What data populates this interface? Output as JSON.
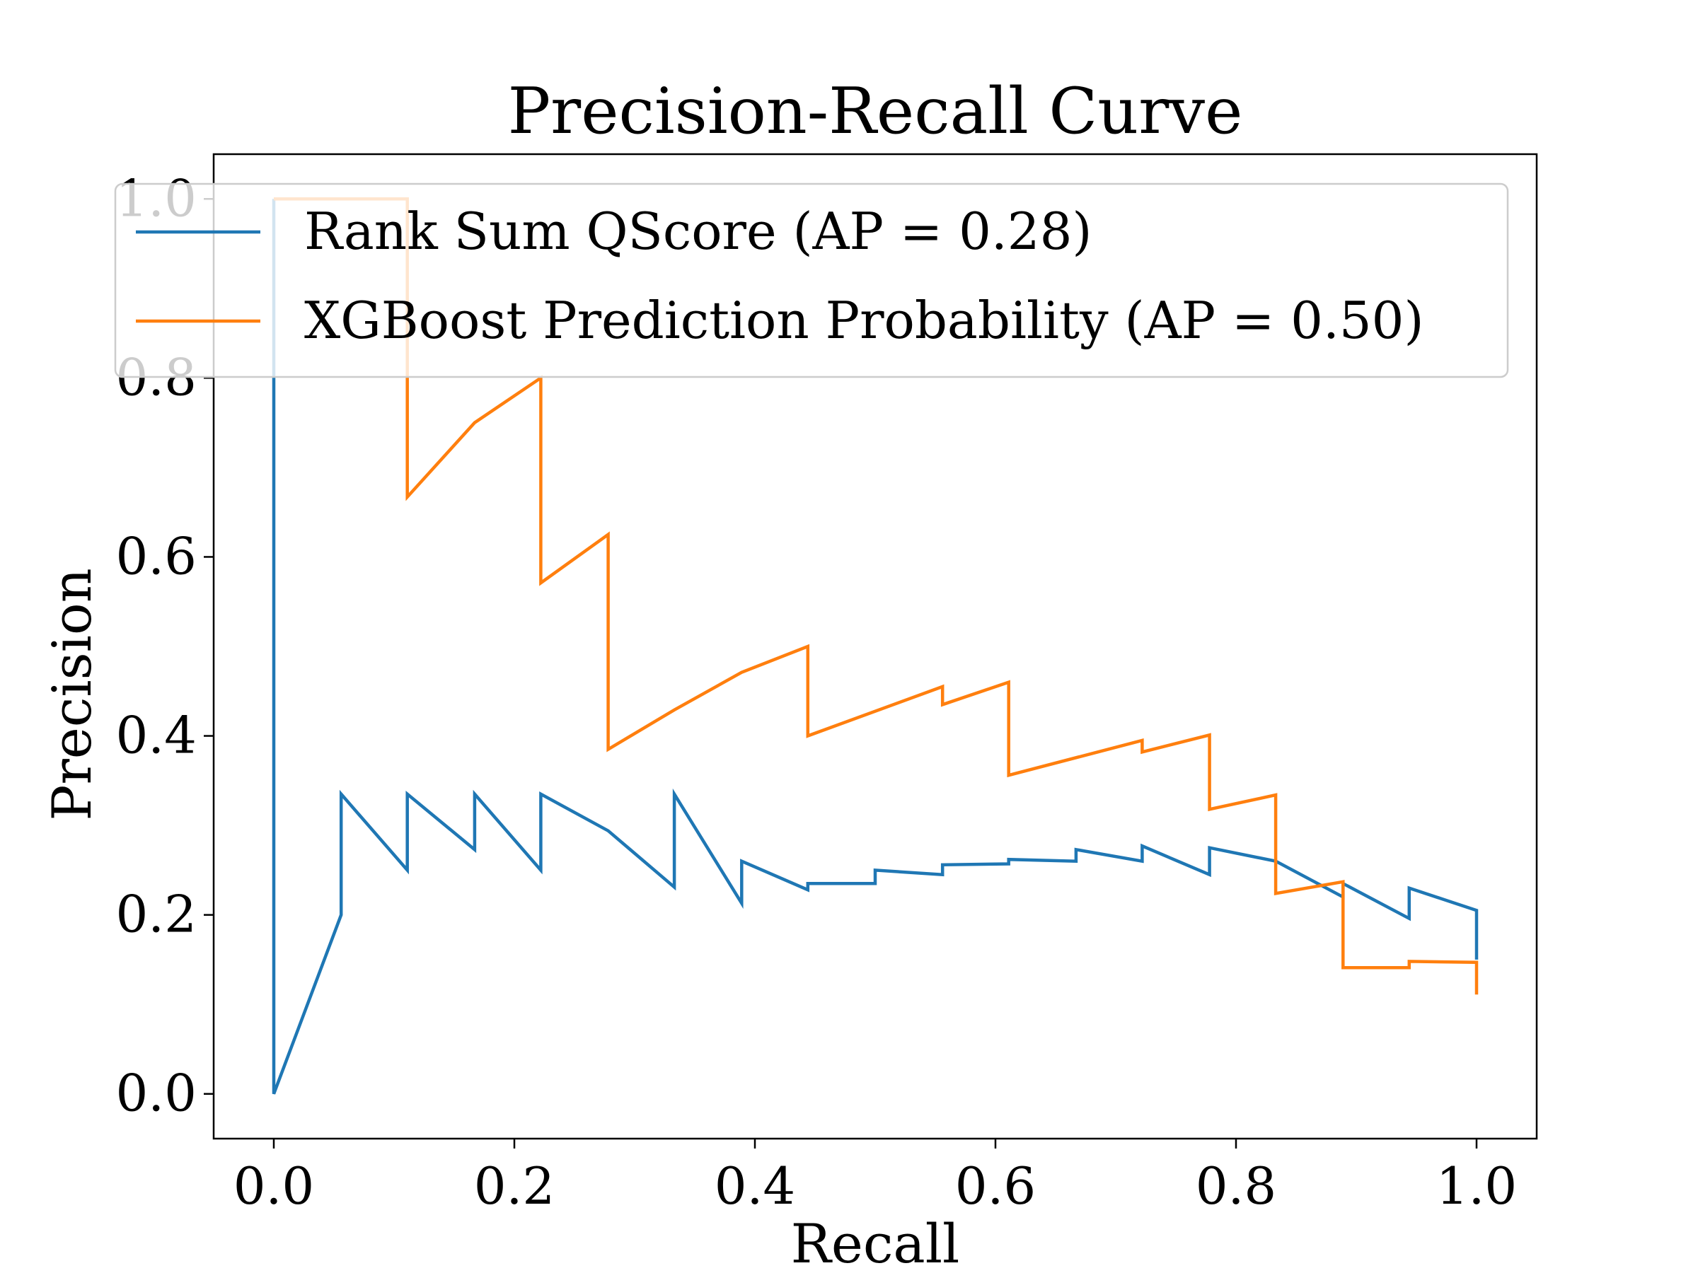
{
  "chart_data": {
    "type": "line",
    "title": "Precision-Recall Curve",
    "xlabel": "Recall",
    "ylabel": "Precision",
    "xlim": [
      -0.05,
      1.05
    ],
    "ylim": [
      -0.05,
      1.05
    ],
    "xticks": [
      0.0,
      0.2,
      0.4,
      0.6,
      0.8,
      1.0
    ],
    "yticks": [
      0.0,
      0.2,
      0.4,
      0.6,
      0.8,
      1.0
    ],
    "xtick_labels": [
      "0.0",
      "0.2",
      "0.4",
      "0.6",
      "0.8",
      "1.0"
    ],
    "ytick_labels": [
      "0.0",
      "0.2",
      "0.4",
      "0.6",
      "0.8",
      "1.0"
    ],
    "grid": false,
    "legend_position": "top",
    "series": [
      {
        "name": "Rank Sum QScore (AP = 0.28)",
        "color": "#1f77b4",
        "x": [
          1.0,
          1.0,
          0.944,
          0.944,
          0.889,
          0.889,
          0.833,
          0.778,
          0.778,
          0.722,
          0.722,
          0.667,
          0.667,
          0.611,
          0.611,
          0.556,
          0.556,
          0.5,
          0.5,
          0.444,
          0.444,
          0.389,
          0.389,
          0.333,
          0.333,
          0.278,
          0.222,
          0.222,
          0.167,
          0.167,
          0.111,
          0.111,
          0.056,
          0.056,
          0.0,
          0.0
        ],
        "y": [
          0.15,
          0.205,
          0.23,
          0.196,
          0.235,
          0.22,
          0.26,
          0.275,
          0.245,
          0.277,
          0.26,
          0.273,
          0.26,
          0.262,
          0.257,
          0.256,
          0.245,
          0.25,
          0.235,
          0.235,
          0.228,
          0.26,
          0.213,
          0.335,
          0.231,
          0.294,
          0.335,
          0.25,
          0.335,
          0.273,
          0.335,
          0.25,
          0.335,
          0.2,
          0.0,
          1.0
        ]
      },
      {
        "name": "XGBoost Prediction Probability (AP = 0.50)",
        "color": "#ff7f0e",
        "x": [
          1.0,
          1.0,
          0.944,
          0.944,
          0.889,
          0.889,
          0.833,
          0.833,
          0.778,
          0.778,
          0.722,
          0.722,
          0.611,
          0.611,
          0.556,
          0.556,
          0.444,
          0.444,
          0.389,
          0.333,
          0.278,
          0.278,
          0.222,
          0.222,
          0.167,
          0.111,
          0.111,
          0.0,
          0.0
        ],
        "y": [
          0.111,
          0.147,
          0.148,
          0.141,
          0.141,
          0.237,
          0.224,
          0.334,
          0.318,
          0.401,
          0.382,
          0.395,
          0.356,
          0.46,
          0.435,
          0.455,
          0.4,
          0.5,
          0.471,
          0.429,
          0.385,
          0.625,
          0.571,
          0.8,
          0.75,
          0.667,
          1.0,
          1.0,
          1.0
        ]
      }
    ]
  }
}
